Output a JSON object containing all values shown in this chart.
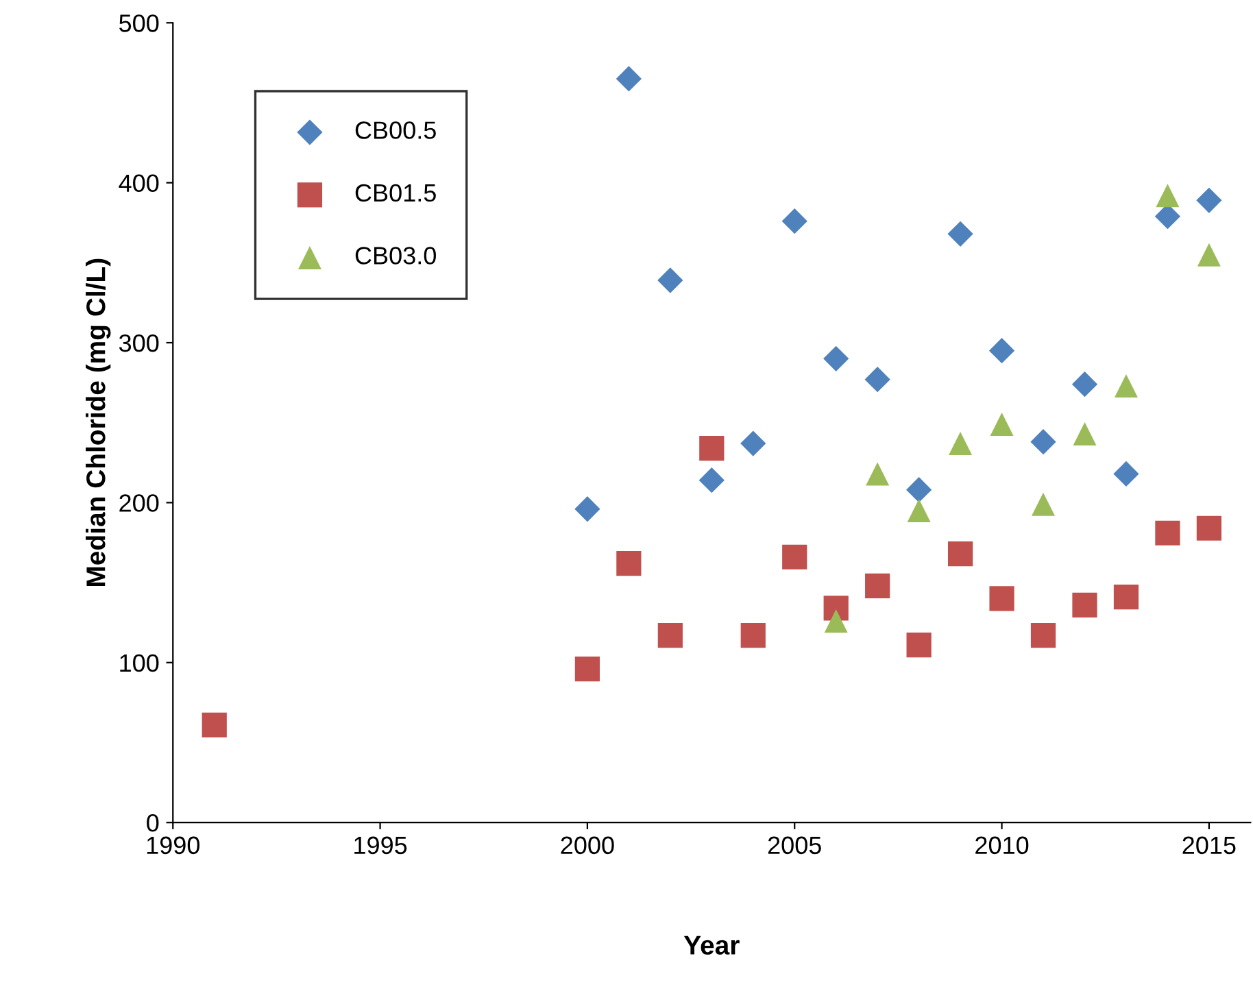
{
  "chart_data": {
    "type": "scatter",
    "xlabel": "Year",
    "ylabel": "Median Chloride (mg Cl/L)",
    "xlim": [
      1990,
      2016
    ],
    "xticks": [
      1990,
      1995,
      2000,
      2005,
      2010,
      2015
    ],
    "ylim": [
      0,
      500
    ],
    "yticks": [
      0,
      100,
      200,
      300,
      400,
      500
    ],
    "legend": "top left",
    "grid": false,
    "series": [
      {
        "name": "CB00.5",
        "color": "#4f81bd",
        "marker": "diamond",
        "x": [
          2000,
          2001,
          2002,
          2003,
          2004,
          2005,
          2006,
          2007,
          2008,
          2009,
          2010,
          2011,
          2012,
          2013,
          2014,
          2015
        ],
        "values": [
          196,
          465,
          339,
          214,
          237,
          376,
          290,
          277,
          208,
          368,
          295,
          238,
          274,
          218,
          379,
          389
        ]
      },
      {
        "name": "CB01.5",
        "color": "#c0504d",
        "marker": "square",
        "x": [
          1991,
          2000,
          2001,
          2002,
          2003,
          2004,
          2005,
          2006,
          2007,
          2008,
          2009,
          2010,
          2011,
          2012,
          2013,
          2014,
          2015
        ],
        "values": [
          61,
          96,
          162,
          117,
          234,
          117,
          166,
          134,
          148,
          111,
          168,
          140,
          117,
          136,
          141,
          181,
          184
        ]
      },
      {
        "name": "CB03.0",
        "color": "#9bbb59",
        "marker": "triangle",
        "x": [
          2006,
          2007,
          2008,
          2009,
          2010,
          2011,
          2012,
          2013,
          2014,
          2015
        ],
        "values": [
          126,
          218,
          195,
          237,
          249,
          199,
          243,
          273,
          392,
          355
        ]
      }
    ]
  }
}
